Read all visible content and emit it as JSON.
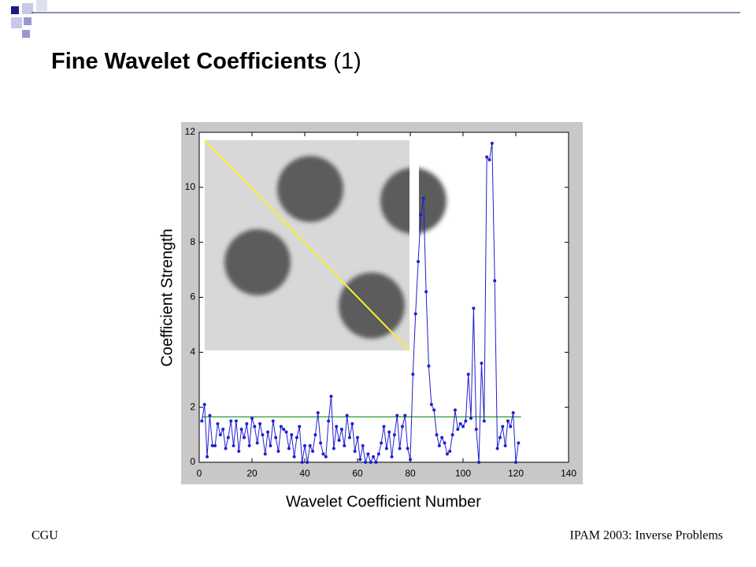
{
  "slide": {
    "title_bold": "Fine Wavelet Coefficients",
    "title_rest": "(1)",
    "footer_left": "CGU",
    "footer_right": "IPAM 2003: Inverse Problems"
  },
  "chart_data": {
    "type": "line",
    "xlabel": "Wavelet Coefficient Number",
    "ylabel": "Coefficient Strength",
    "xlim": [
      0,
      140
    ],
    "xticks": [
      0,
      20,
      40,
      60,
      80,
      100,
      120,
      140
    ],
    "ylim": [
      0,
      12
    ],
    "yticks": [
      0,
      2,
      4,
      6,
      8,
      10,
      12
    ],
    "x": [
      1,
      2,
      3,
      4,
      5,
      6,
      7,
      8,
      9,
      10,
      11,
      12,
      13,
      14,
      15,
      16,
      17,
      18,
      19,
      20,
      21,
      22,
      23,
      24,
      25,
      26,
      27,
      28,
      29,
      30,
      31,
      32,
      33,
      34,
      35,
      36,
      37,
      38,
      39,
      40,
      41,
      42,
      43,
      44,
      45,
      46,
      47,
      48,
      49,
      50,
      51,
      52,
      53,
      54,
      55,
      56,
      57,
      58,
      59,
      60,
      61,
      62,
      63,
      64,
      65,
      66,
      67,
      68,
      69,
      70,
      71,
      72,
      73,
      74,
      75,
      76,
      77,
      78,
      79,
      80,
      81,
      82,
      83,
      84,
      85,
      86,
      87,
      88,
      89,
      90,
      91,
      92,
      93,
      94,
      95,
      96,
      97,
      98,
      99,
      100,
      101,
      102,
      103,
      104,
      105,
      106,
      107,
      108,
      109,
      110,
      111,
      112,
      113,
      114,
      115,
      116,
      117,
      118,
      119,
      120,
      121
    ],
    "series": [
      {
        "color": "#1f1fd0",
        "values": [
          1.5,
          2.1,
          0.2,
          1.7,
          0.6,
          0.6,
          1.4,
          1.0,
          1.2,
          0.5,
          0.9,
          1.5,
          0.6,
          1.5,
          0.4,
          1.2,
          0.9,
          1.4,
          0.6,
          1.6,
          1.3,
          0.7,
          1.4,
          1.0,
          0.3,
          1.1,
          0.6,
          1.5,
          0.9,
          0.4,
          1.3,
          1.2,
          1.1,
          0.5,
          1.0,
          0.2,
          0.9,
          1.3,
          0.0,
          0.6,
          0.0,
          0.6,
          0.4,
          1.0,
          1.8,
          0.7,
          0.3,
          0.2,
          1.5,
          2.4,
          0.5,
          1.3,
          0.8,
          1.2,
          0.6,
          1.7,
          0.9,
          1.4,
          0.4,
          0.9,
          0.1,
          0.6,
          0.0,
          0.3,
          0.0,
          0.2,
          0.0,
          0.3,
          0.7,
          1.3,
          0.5,
          1.1,
          0.2,
          1.0,
          1.7,
          0.5,
          1.3,
          1.7,
          0.5,
          0.1,
          3.2,
          5.4,
          7.3,
          9.0,
          9.6,
          6.2,
          3.5,
          2.1,
          1.9,
          1.0,
          0.6,
          0.9,
          0.7,
          0.3,
          0.4,
          1.0,
          1.9,
          1.2,
          1.4,
          1.3,
          1.5,
          3.2,
          1.6,
          5.6,
          1.2,
          0.0,
          3.6,
          1.5,
          11.1,
          11.0,
          11.6,
          6.6,
          0.5,
          0.9,
          1.3,
          0.6,
          1.5,
          1.3,
          1.8,
          0.0,
          0.7
        ]
      }
    ],
    "threshold_line": {
      "x": [
        1,
        122
      ],
      "values": [
        1.65,
        1.65
      ],
      "color": "#2a9a2a"
    }
  }
}
